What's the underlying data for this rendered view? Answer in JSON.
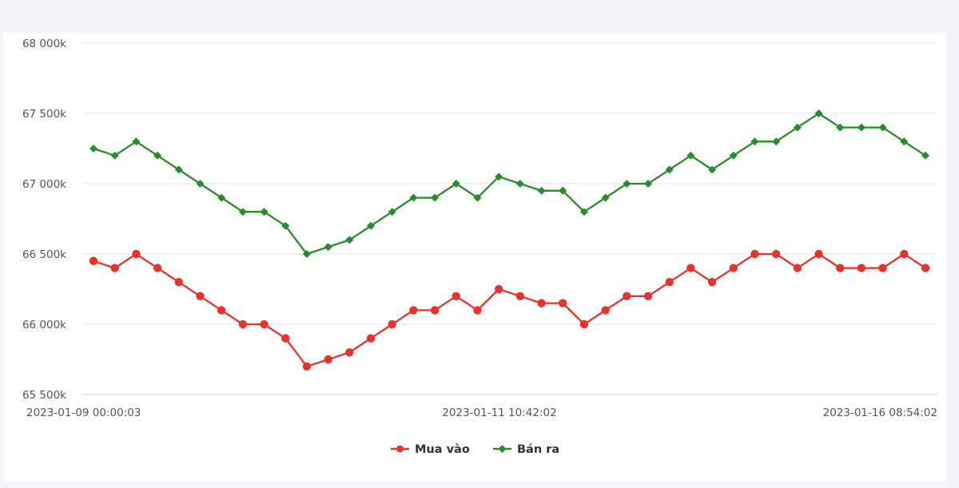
{
  "chart_data": {
    "type": "line",
    "y_ticks": [
      "68 000k",
      "67 500k",
      "67 000k",
      "66 500k",
      "66 000k",
      "65 500k"
    ],
    "y_tick_values": [
      68000,
      67500,
      67000,
      66500,
      66000,
      65500
    ],
    "ylim": [
      65500,
      68000
    ],
    "x_tick_labels": [
      "2023-01-09 00:00:03",
      "2023-01-11 10:42:02",
      "2023-01-16 08:54:02"
    ],
    "x_tick_indices": [
      0,
      19,
      39
    ],
    "point_count": 40,
    "grid": true,
    "legend_position": "bottom-center",
    "series": [
      {
        "name": "Mua vào",
        "color": "#e8322c",
        "marker": "circle",
        "values": [
          66450,
          66400,
          66500,
          66400,
          66300,
          66200,
          66100,
          66000,
          66000,
          65900,
          65700,
          65750,
          65800,
          65900,
          66000,
          66100,
          66100,
          66200,
          66100,
          66250,
          66200,
          66150,
          66150,
          66000,
          66100,
          66200,
          66200,
          66300,
          66400,
          66300,
          66400,
          66500,
          66500,
          66400,
          66500,
          66400,
          66400,
          66400,
          66500,
          66400
        ]
      },
      {
        "name": "Bán ra",
        "color": "#2a8b2a",
        "marker": "diamond",
        "values": [
          67250,
          67200,
          67300,
          67200,
          67100,
          67000,
          66900,
          66800,
          66800,
          66700,
          66500,
          66550,
          66600,
          66700,
          66800,
          66900,
          66900,
          67000,
          66900,
          67050,
          67000,
          66950,
          66950,
          66800,
          66900,
          67000,
          67000,
          67100,
          67200,
          67100,
          67200,
          67300,
          67300,
          67400,
          67500,
          67400,
          67400,
          67400,
          67300,
          67200
        ]
      }
    ]
  }
}
